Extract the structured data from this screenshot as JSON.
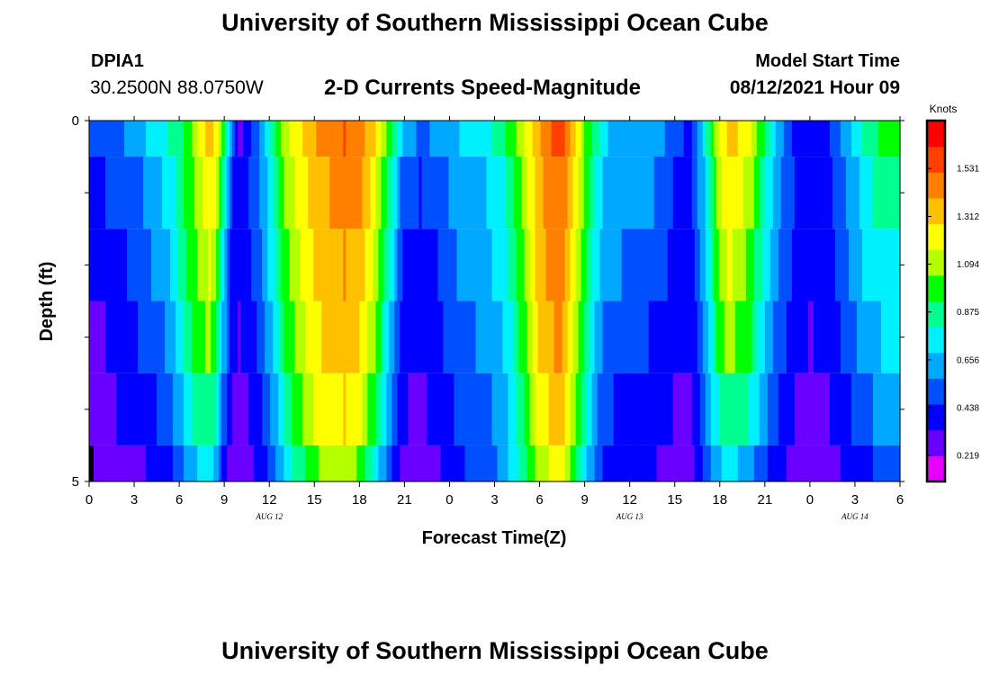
{
  "page": {
    "title_top": "University of Southern Mississippi Ocean Cube",
    "title_bottom": "University of Southern Mississippi Ocean Cube",
    "station_id": "DPIA1",
    "station_coords": "30.2500N  88.0750W",
    "plot_title": "2-D Currents Speed-Magnitude",
    "model_start_label": "Model Start Time",
    "model_start_value": "08/12/2021 Hour 09"
  },
  "colors": {
    "ramp": [
      "#e600ff",
      "#6a00ff",
      "#0000ff",
      "#0050ff",
      "#00a8ff",
      "#00f0ff",
      "#00ff90",
      "#00ff00",
      "#b4ff00",
      "#ffff00",
      "#ffc000",
      "#ff8000",
      "#ff4000",
      "#ff0000"
    ]
  },
  "chart_data": {
    "type": "heatmap",
    "title": "2-D Currents Speed-Magnitude",
    "xlabel": "Forecast Time(Z)",
    "ylabel": "Depth (ft)",
    "x_range": [
      0,
      54
    ],
    "y_range": [
      0,
      5
    ],
    "x_ticks": [
      {
        "pos": 0,
        "label": "0"
      },
      {
        "pos": 3,
        "label": "3"
      },
      {
        "pos": 6,
        "label": "6"
      },
      {
        "pos": 9,
        "label": "9"
      },
      {
        "pos": 12,
        "label": "12"
      },
      {
        "pos": 15,
        "label": "15"
      },
      {
        "pos": 18,
        "label": "18"
      },
      {
        "pos": 21,
        "label": "21"
      },
      {
        "pos": 24,
        "label": "0"
      },
      {
        "pos": 27,
        "label": "3"
      },
      {
        "pos": 30,
        "label": "6"
      },
      {
        "pos": 33,
        "label": "9"
      },
      {
        "pos": 36,
        "label": "12"
      },
      {
        "pos": 39,
        "label": "15"
      },
      {
        "pos": 42,
        "label": "18"
      },
      {
        "pos": 45,
        "label": "21"
      },
      {
        "pos": 48,
        "label": "0"
      },
      {
        "pos": 51,
        "label": "3"
      },
      {
        "pos": 54,
        "label": "6"
      }
    ],
    "day_labels": [
      {
        "pos": 12,
        "label": "AUG  12"
      },
      {
        "pos": 36,
        "label": "AUG  13"
      },
      {
        "pos": 51,
        "label": "AUG  14"
      }
    ],
    "y_ticks": [
      {
        "pos": 0,
        "label": "0"
      },
      {
        "pos": 5,
        "label": "5"
      }
    ],
    "colorbar": {
      "unit": "Knots",
      "range": [
        0.1,
        1.75
      ],
      "ticks": [
        {
          "value": 0.219,
          "label": "0.219"
        },
        {
          "value": 0.438,
          "label": "0.438"
        },
        {
          "value": 0.656,
          "label": "0.656"
        },
        {
          "value": 0.875,
          "label": "0.875"
        },
        {
          "value": 1.094,
          "label": "1.094"
        },
        {
          "value": 1.312,
          "label": "1.312"
        },
        {
          "value": 1.531,
          "label": "1.531"
        }
      ]
    },
    "depth_bands": [
      [
        0.0,
        0.5
      ],
      [
        0.5,
        1.5
      ],
      [
        1.5,
        2.5
      ],
      [
        2.5,
        3.5
      ],
      [
        3.5,
        4.5
      ],
      [
        4.5,
        5.0
      ]
    ],
    "profile_times": [
      0,
      1,
      2,
      3,
      4,
      5,
      6,
      6.5,
      7,
      7.5,
      8,
      8.5,
      9,
      9.5,
      10,
      10.5,
      11,
      11.5,
      12,
      12.5,
      13,
      14,
      15,
      16,
      17,
      18,
      19,
      20,
      21,
      22,
      23,
      23.5,
      24,
      25,
      26,
      27,
      28,
      29,
      30,
      31,
      31.5,
      32,
      33,
      34,
      34.5,
      35,
      36,
      37,
      38,
      39,
      40,
      41,
      42,
      42.5,
      43,
      44,
      45,
      46,
      47,
      48,
      49,
      50,
      51,
      52,
      53,
      54
    ],
    "profile_values": [
      [
        0.48,
        0.48,
        0.55,
        0.62,
        0.7,
        0.78,
        0.88,
        0.98,
        1.1,
        1.22,
        1.32,
        1.22,
        0.95,
        0.55,
        0.22,
        0.4,
        0.5,
        0.62,
        0.78,
        0.95,
        1.1,
        1.25,
        1.38,
        1.48,
        1.52,
        1.48,
        1.28,
        0.95,
        0.62,
        0.55,
        0.58,
        0.62,
        0.66,
        0.7,
        0.75,
        0.82,
        0.95,
        1.15,
        1.4,
        1.55,
        1.55,
        1.4,
        1.05,
        0.8,
        0.7,
        0.66,
        0.66,
        0.66,
        0.6,
        0.5,
        0.42,
        0.75,
        1.2,
        1.3,
        1.3,
        1.2,
        0.9,
        0.62,
        0.42,
        0.36,
        0.4,
        0.55,
        0.72,
        0.88,
        0.95,
        0.95
      ],
      [
        0.45,
        0.45,
        0.48,
        0.52,
        0.6,
        0.7,
        0.85,
        0.95,
        1.05,
        1.15,
        1.25,
        1.15,
        0.8,
        0.45,
        0.38,
        0.42,
        0.5,
        0.6,
        0.75,
        0.9,
        1.05,
        1.2,
        1.32,
        1.4,
        1.45,
        1.42,
        1.22,
        0.85,
        0.48,
        0.45,
        0.48,
        0.52,
        0.58,
        0.62,
        0.66,
        0.72,
        0.85,
        1.1,
        1.38,
        1.48,
        1.48,
        1.35,
        1.0,
        0.72,
        0.66,
        0.62,
        0.62,
        0.6,
        0.55,
        0.45,
        0.4,
        0.7,
        1.15,
        1.22,
        1.22,
        1.12,
        0.8,
        0.58,
        0.45,
        0.38,
        0.4,
        0.5,
        0.65,
        0.8,
        0.85,
        0.85
      ],
      [
        0.36,
        0.36,
        0.42,
        0.48,
        0.56,
        0.62,
        0.8,
        0.92,
        1.02,
        1.1,
        1.18,
        1.05,
        0.7,
        0.42,
        0.36,
        0.4,
        0.48,
        0.58,
        0.7,
        0.85,
        1.0,
        1.15,
        1.28,
        1.36,
        1.4,
        1.36,
        1.15,
        0.78,
        0.42,
        0.4,
        0.44,
        0.48,
        0.55,
        0.6,
        0.64,
        0.7,
        0.82,
        1.05,
        1.35,
        1.45,
        1.45,
        1.3,
        0.95,
        0.68,
        0.62,
        0.58,
        0.56,
        0.54,
        0.5,
        0.42,
        0.38,
        0.65,
        1.08,
        1.18,
        1.15,
        1.02,
        0.75,
        0.55,
        0.42,
        0.36,
        0.38,
        0.48,
        0.62,
        0.75,
        0.8,
        0.8
      ],
      [
        0.33,
        0.33,
        0.38,
        0.44,
        0.5,
        0.56,
        0.72,
        0.85,
        0.95,
        1.02,
        1.08,
        0.95,
        0.62,
        0.38,
        0.33,
        0.36,
        0.44,
        0.52,
        0.62,
        0.75,
        0.92,
        1.1,
        1.25,
        1.32,
        1.36,
        1.3,
        1.05,
        0.7,
        0.38,
        0.36,
        0.4,
        0.44,
        0.5,
        0.55,
        0.58,
        0.62,
        0.75,
        1.0,
        1.3,
        1.4,
        1.4,
        1.25,
        0.9,
        0.6,
        0.55,
        0.5,
        0.48,
        0.46,
        0.44,
        0.38,
        0.34,
        0.6,
        1.0,
        1.1,
        1.05,
        0.95,
        0.68,
        0.5,
        0.4,
        0.33,
        0.35,
        0.44,
        0.56,
        0.66,
        0.7,
        0.7
      ],
      [
        0.32,
        0.32,
        0.34,
        0.38,
        0.42,
        0.48,
        0.62,
        0.75,
        0.85,
        0.9,
        0.92,
        0.8,
        0.5,
        0.32,
        0.3,
        0.33,
        0.38,
        0.45,
        0.55,
        0.68,
        0.85,
        1.02,
        1.18,
        1.25,
        1.28,
        1.2,
        0.95,
        0.62,
        0.34,
        0.32,
        0.35,
        0.38,
        0.44,
        0.5,
        0.54,
        0.58,
        0.7,
        0.95,
        1.22,
        1.32,
        1.32,
        1.15,
        0.82,
        0.55,
        0.5,
        0.45,
        0.42,
        0.4,
        0.38,
        0.33,
        0.3,
        0.55,
        0.85,
        0.92,
        0.9,
        0.8,
        0.6,
        0.42,
        0.33,
        0.3,
        0.32,
        0.38,
        0.48,
        0.56,
        0.6,
        0.6
      ],
      [
        0.28,
        0.28,
        0.3,
        0.32,
        0.34,
        0.38,
        0.5,
        0.6,
        0.68,
        0.72,
        0.75,
        0.62,
        0.4,
        0.28,
        0.27,
        0.3,
        0.34,
        0.4,
        0.48,
        0.58,
        0.72,
        0.88,
        1.02,
        1.1,
        1.12,
        1.02,
        0.78,
        0.5,
        0.28,
        0.27,
        0.3,
        0.34,
        0.4,
        0.45,
        0.5,
        0.55,
        0.7,
        0.9,
        1.1,
        1.2,
        1.2,
        1.05,
        0.72,
        0.48,
        0.42,
        0.38,
        0.36,
        0.35,
        0.33,
        0.3,
        0.28,
        0.48,
        0.68,
        0.72,
        0.7,
        0.62,
        0.48,
        0.36,
        0.3,
        0.27,
        0.28,
        0.33,
        0.4,
        0.45,
        0.48,
        0.48
      ]
    ]
  }
}
